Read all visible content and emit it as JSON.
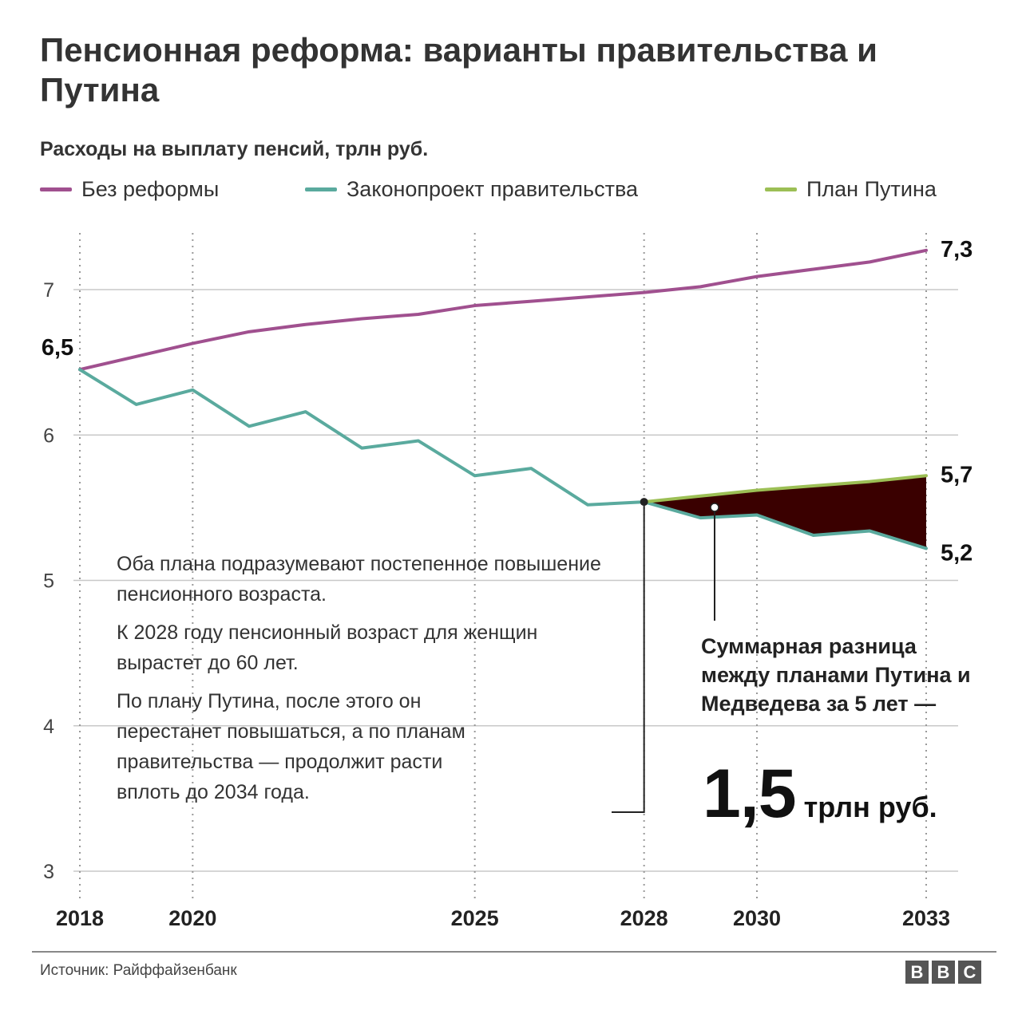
{
  "title": "Пенсионная реформа: варианты правительства и Путина",
  "subtitle": "Расходы на выплату пенсий, трлн руб.",
  "legend": [
    {
      "label": "Без реформы",
      "color": "#a0508f"
    },
    {
      "label": "Законопроект правительства",
      "color": "#5aaa9e"
    },
    {
      "label": "План Путина",
      "color": "#9cbf55"
    }
  ],
  "note": {
    "p1": "Оба плана подразумевают постепенное повышение пенсионного возраста.",
    "p2": "К 2028 году пенсионный возраст для женщин вырастет до 60 лет.",
    "p3": "По плану Путина, после этого он перестанет повышаться, а по планам правительства — продолжит расти вплоть до 2034 года."
  },
  "difference": {
    "label": "Суммарная разница между планами Путина и Медведева за 5 лет —",
    "value": "1,5",
    "unit": "трлн руб."
  },
  "source": "Источник: Райффайзенбанк",
  "logo": [
    "B",
    "B",
    "C"
  ],
  "colors": {
    "fill": "#3a0000",
    "grid": "#c8c8c8"
  },
  "chart_data": {
    "type": "line",
    "title": "Расходы на выплату пенсий, трлн руб.",
    "xlabel": "",
    "ylabel": "",
    "xlim": [
      2018,
      2033
    ],
    "ylim": [
      3,
      7.3
    ],
    "x_ticks": [
      2018,
      2020,
      2025,
      2028,
      2030,
      2033
    ],
    "y_ticks": [
      3,
      4,
      5,
      6,
      7
    ],
    "grid": "vertical dotted at x ticks, horizontal solid at y ticks",
    "legend_position": "top",
    "series": [
      {
        "name": "Без реформы",
        "x": [
          2018,
          2019,
          2020,
          2021,
          2022,
          2023,
          2024,
          2025,
          2026,
          2027,
          2028,
          2029,
          2030,
          2031,
          2032,
          2033
        ],
        "values": [
          6.45,
          6.54,
          6.63,
          6.71,
          6.76,
          6.8,
          6.83,
          6.89,
          6.92,
          6.95,
          6.98,
          7.02,
          7.09,
          7.14,
          7.19,
          7.27
        ]
      },
      {
        "name": "Законопроект правительства",
        "x": [
          2018,
          2019,
          2020,
          2021,
          2022,
          2023,
          2024,
          2025,
          2026,
          2027,
          2028,
          2029,
          2030,
          2031,
          2032,
          2033
        ],
        "values": [
          6.45,
          6.21,
          6.31,
          6.06,
          6.16,
          5.91,
          5.96,
          5.72,
          5.77,
          5.52,
          5.54,
          5.43,
          5.45,
          5.31,
          5.34,
          5.22
        ]
      },
      {
        "name": "План Путина",
        "x": [
          2028,
          2029,
          2030,
          2031,
          2032,
          2033
        ],
        "values": [
          5.54,
          5.58,
          5.62,
          5.65,
          5.68,
          5.72
        ]
      }
    ],
    "data_labels": [
      {
        "text": "6,5",
        "series": 0,
        "x": 2018
      },
      {
        "text": "7,3",
        "series": 0,
        "x": 2033
      },
      {
        "text": "5,7",
        "series": 2,
        "x": 2033
      },
      {
        "text": "5,2",
        "series": 1,
        "x": 2033
      }
    ],
    "shaded_area": {
      "between": [
        "План Путина",
        "Законопроект правительства"
      ],
      "from": 2028,
      "to": 2033
    }
  }
}
